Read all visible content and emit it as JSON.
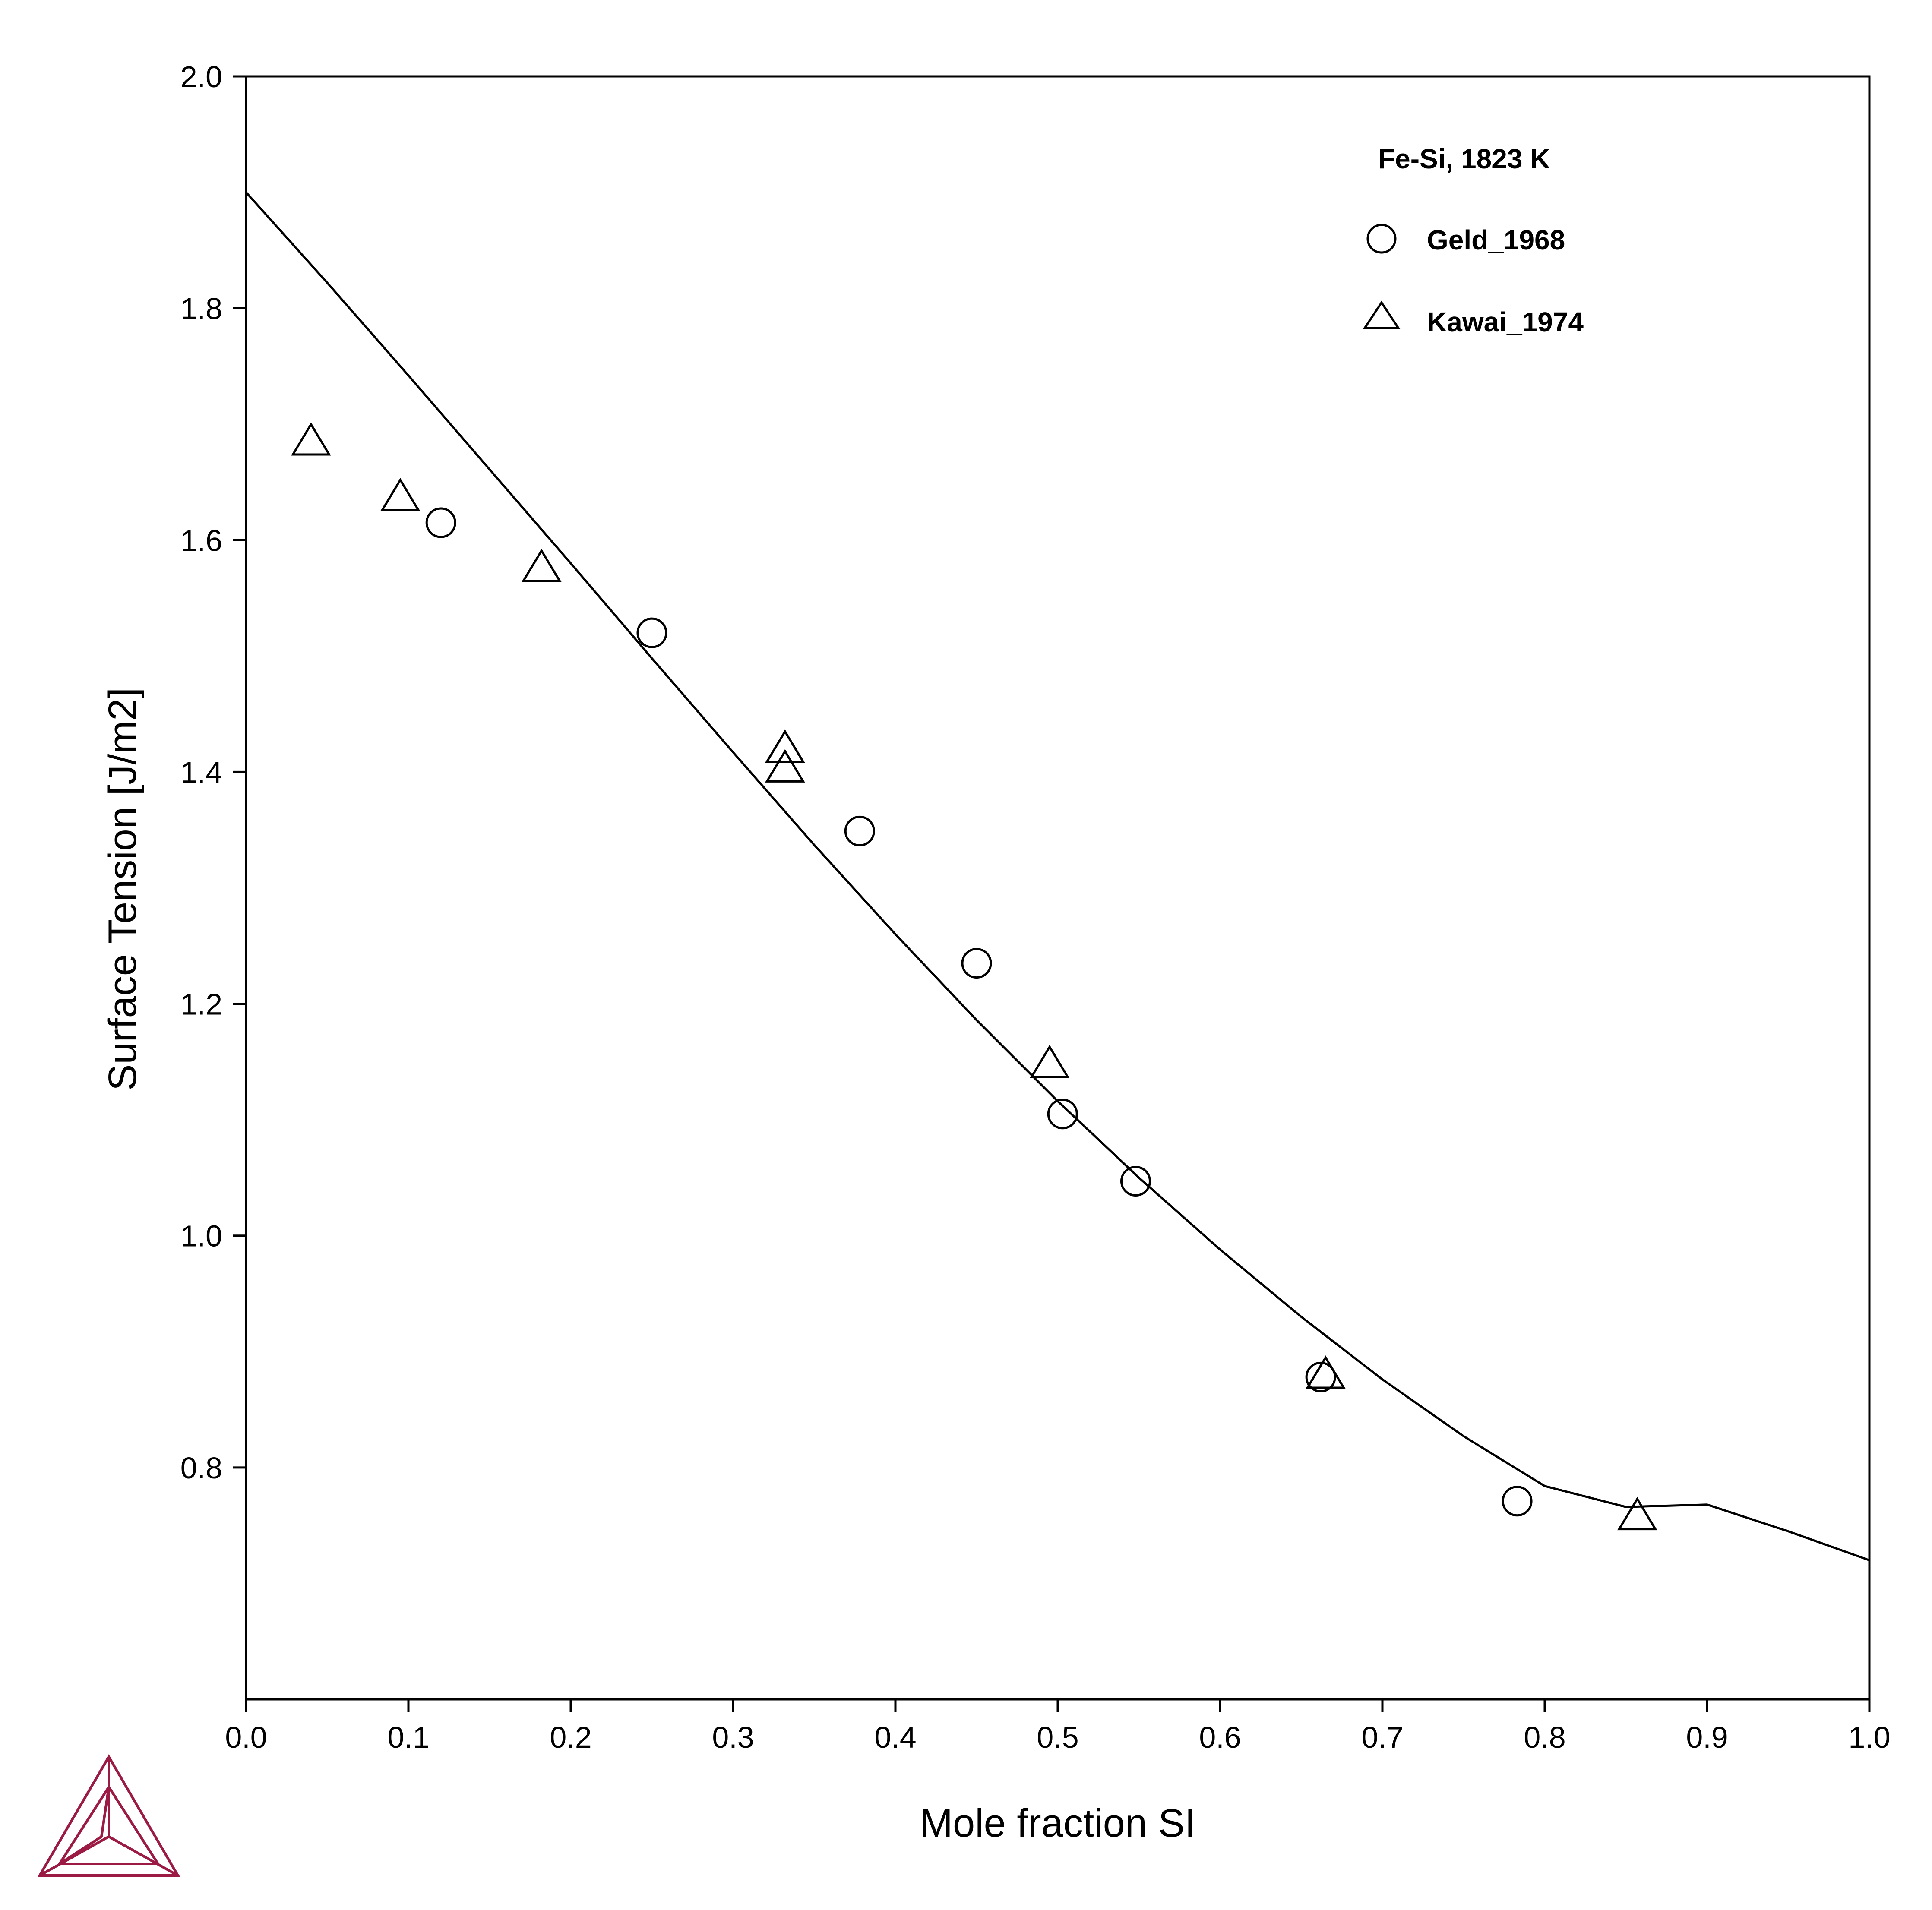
{
  "chart_data": {
    "type": "scatter",
    "xlabel": "Mole fraction SI",
    "ylabel": "Surface Tension [J/m2]",
    "xlim": [
      0.0,
      1.0
    ],
    "ylim": [
      0.6,
      2.0
    ],
    "xticks": [
      "0.0",
      "0.1",
      "0.2",
      "0.3",
      "0.4",
      "0.5",
      "0.6",
      "0.7",
      "0.8",
      "0.9",
      "1.0"
    ],
    "yticks": [
      "0.8",
      "1.0",
      "1.2",
      "1.4",
      "1.6",
      "1.8",
      "2.0"
    ],
    "grid": false,
    "legend_title": "Fe-Si, 1823 K",
    "legend_position": "top-right",
    "line_series": {
      "style": "solid black line",
      "x": [
        0.0,
        0.05,
        0.1,
        0.15,
        0.2,
        0.25,
        0.3,
        0.35,
        0.4,
        0.45,
        0.5,
        0.55,
        0.6,
        0.65,
        0.7,
        0.75,
        0.8,
        0.85,
        0.9,
        0.95,
        1.0
      ],
      "y": [
        1.9,
        1.822,
        1.742,
        1.661,
        1.58,
        1.498,
        1.417,
        1.337,
        1.26,
        1.186,
        1.116,
        1.05,
        0.988,
        0.93,
        0.876,
        0.827,
        0.784,
        0.766,
        0.768,
        0.745,
        0.72
      ]
    },
    "series": [
      {
        "name": "Geld_1968",
        "marker": "circle",
        "x": [
          0.12,
          0.25,
          0.378,
          0.45,
          0.503,
          0.548,
          0.662,
          0.783
        ],
        "y": [
          1.615,
          1.52,
          1.349,
          1.235,
          1.105,
          1.047,
          0.878,
          0.771
        ]
      },
      {
        "name": "Kawai_1974",
        "marker": "triangle",
        "x": [
          0.04,
          0.095,
          0.182,
          0.332,
          0.332,
          0.495,
          0.665,
          0.857
        ],
        "y": [
          1.685,
          1.637,
          1.576,
          1.42,
          1.403,
          1.148,
          0.88,
          0.758
        ]
      }
    ]
  },
  "logo": {
    "name": "triangle-logo",
    "color": "#9b1b45"
  }
}
